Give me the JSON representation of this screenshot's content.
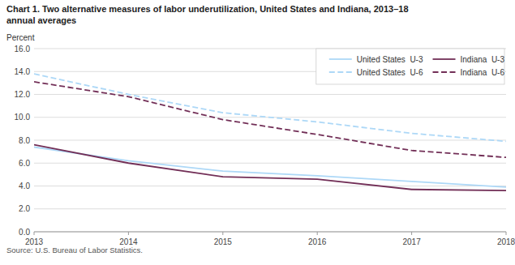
{
  "chart_data": {
    "type": "line",
    "title": "Chart 1. Two alternative measures of labor underutilization, United States and Indiana, 2013–18",
    "subtitle": "annual averages",
    "y_label": "Percent",
    "annotations": [
      "Source: U.S. Bureau of Labor Statistics."
    ],
    "x": [
      2013,
      2014,
      2015,
      2016,
      2017,
      2018
    ],
    "xlim": [
      2013,
      2018
    ],
    "xticks": [
      2013,
      2014,
      2015,
      2016,
      2017,
      2018
    ],
    "ylim": [
      0,
      16.0
    ],
    "yticks": [
      {
        "value": 0.0,
        "label": "0.0"
      },
      {
        "value": 2.0,
        "label": "2.0"
      },
      {
        "value": 4.0,
        "label": "4.0"
      },
      {
        "value": 6.0,
        "label": "6.0"
      },
      {
        "value": 8.0,
        "label": "8.0"
      },
      {
        "value": 10.0,
        "label": "10.0"
      },
      {
        "value": 12.0,
        "label": "12.0"
      },
      {
        "value": 14.0,
        "label": "14.0"
      },
      {
        "value": 16.0,
        "label": "16.0"
      }
    ],
    "grid": true,
    "legend": "upper right",
    "series": [
      {
        "name": "United States  U-3",
        "color": "#add8f7",
        "line_style": "solid",
        "values": [
          7.4,
          6.2,
          5.3,
          4.9,
          4.4,
          3.9
        ]
      },
      {
        "name": "United States  U-6",
        "color": "#add8f7",
        "line_style": "dashed",
        "values": [
          13.8,
          12.0,
          10.4,
          9.6,
          8.6,
          7.9
        ]
      },
      {
        "name": "Indiana  U-3",
        "color": "#722f57",
        "line_style": "solid",
        "values": [
          7.6,
          6.0,
          4.8,
          4.6,
          3.7,
          3.6
        ]
      },
      {
        "name": "Indiana  U-6",
        "color": "#722f57",
        "line_style": "dashed",
        "values": [
          13.1,
          11.8,
          9.8,
          8.5,
          7.1,
          6.5
        ]
      }
    ]
  }
}
